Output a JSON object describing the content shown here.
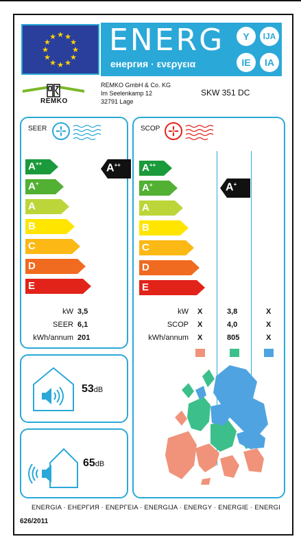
{
  "header": {
    "energy_word": "ENERG",
    "energy_sub": "енергия · ενεργεια",
    "lang_badges": [
      "Y",
      "IJA",
      "IE",
      "IA"
    ]
  },
  "supplier": {
    "name": "REMKO GmbH & Co. KG",
    "street": "Im Seelenkamp 12",
    "city": "32791 Lage",
    "model": "SKW 351 DC",
    "logo_text": "REMKO"
  },
  "classes": [
    {
      "letter": "A",
      "sup": "++",
      "color": "#1a9a3a"
    },
    {
      "letter": "A",
      "sup": "+",
      "color": "#52b033"
    },
    {
      "letter": "A",
      "sup": "",
      "color": "#bcd63a"
    },
    {
      "letter": "B",
      "sup": "",
      "color": "#ffe500"
    },
    {
      "letter": "C",
      "sup": "",
      "color": "#fcb814"
    },
    {
      "letter": "D",
      "sup": "",
      "color": "#f06b1f"
    },
    {
      "letter": "E",
      "sup": "",
      "color": "#e2231a"
    }
  ],
  "seer": {
    "title": "SEER",
    "rating": {
      "letter": "A",
      "sup": "++"
    },
    "rows": [
      {
        "key": "kW",
        "value": "3,5"
      },
      {
        "key": "SEER",
        "value": "6,1"
      },
      {
        "key": "kWh/annum",
        "value": "201"
      }
    ]
  },
  "scop": {
    "title": "SCOP",
    "rating": {
      "letter": "A",
      "sup": "+"
    },
    "rows": [
      {
        "key": "kW",
        "warm": "X",
        "avg": "3,8",
        "cold": "X"
      },
      {
        "key": "SCOP",
        "warm": "X",
        "avg": "4,0",
        "cold": "X"
      },
      {
        "key": "kWh/annum",
        "warm": "X",
        "avg": "805",
        "cold": "X"
      }
    ],
    "zone_colors": {
      "warm": "#f0937a",
      "average": "#3cbf8a",
      "cold": "#4fa3e0"
    }
  },
  "noise": {
    "indoor": {
      "value": "53",
      "unit": "dB"
    },
    "outdoor": {
      "value": "65",
      "unit": "dB"
    }
  },
  "footer": {
    "energy_line": "ENERGIA · ЕНЕРГИЯ · ΕΝΕΡΓΕΙΑ · ENERGIJA · ENERGY · ENERGIE · ENERGI",
    "regulation": "626/2011"
  },
  "colors": {
    "accent": "#2aa8d8",
    "eu_blue": "#2a3f9b",
    "eu_star": "#ffd200"
  }
}
